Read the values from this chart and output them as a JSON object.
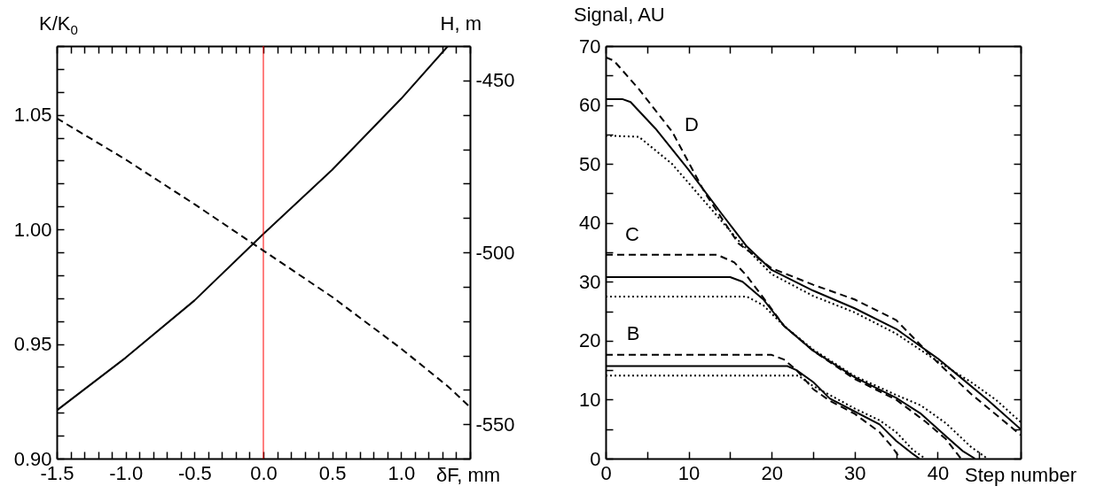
{
  "chart_data": [
    {
      "type": "line",
      "xlabel": "δF, mm",
      "ylabel": "K/K$_{0}$",
      "y2label": "H, m",
      "x": [
        -1.5,
        -1.0,
        -0.5,
        0,
        0.5,
        1.0,
        1.34,
        1.5
      ],
      "series": [
        {
          "color": "#000000",
          "line_style": "solid",
          "values": [
            0.921,
            0.944,
            0.969,
            0.998,
            1.026,
            1.057,
            1.08,
            null
          ]
        },
        {
          "color": "#000000",
          "line_style": "dashed",
          "axis": "y2",
          "values": [
            -461,
            -473,
            -486,
            -499.5,
            -513,
            -528,
            -539,
            -545
          ]
        }
      ],
      "xlim": [
        -1.5,
        1.5
      ],
      "xticks": [
        {
          "value": -1.5,
          "label": "-1.5"
        },
        {
          "value": -1.4,
          "label": null
        },
        {
          "value": -1.3,
          "label": null
        },
        {
          "value": -1.2,
          "label": null
        },
        {
          "value": -1.1,
          "label": null
        },
        {
          "value": -1.0,
          "label": "-1.0"
        },
        {
          "value": -0.9,
          "label": null
        },
        {
          "value": -0.8,
          "label": null
        },
        {
          "value": -0.7,
          "label": null
        },
        {
          "value": -0.6,
          "label": null
        },
        {
          "value": -0.5,
          "label": "-0.5"
        },
        {
          "value": -0.4,
          "label": null
        },
        {
          "value": -0.3,
          "label": null
        },
        {
          "value": -0.2,
          "label": null
        },
        {
          "value": -0.1,
          "label": null
        },
        {
          "value": 0,
          "label": "0.0"
        },
        {
          "value": 0.1,
          "label": null
        },
        {
          "value": 0.2,
          "label": null
        },
        {
          "value": 0.3,
          "label": null
        },
        {
          "value": 0.4,
          "label": null
        },
        {
          "value": 0.5,
          "label": "0.5"
        },
        {
          "value": 0.6,
          "label": null
        },
        {
          "value": 0.7,
          "label": null
        },
        {
          "value": 0.8,
          "label": null
        },
        {
          "value": 0.9,
          "label": null
        },
        {
          "value": 1.0,
          "label": "1.0"
        },
        {
          "value": 1.1,
          "label": null
        },
        {
          "value": 1.2,
          "label": null
        },
        {
          "value": 1.3,
          "label": null
        },
        {
          "value": 1.4,
          "label": null
        },
        {
          "value": 1.5,
          "label": null
        }
      ],
      "ylim": [
        0.9,
        1.08
      ],
      "yticks": [
        {
          "value": 0.9,
          "label": "0.90"
        },
        {
          "value": 0.91,
          "label": null
        },
        {
          "value": 0.92,
          "label": null
        },
        {
          "value": 0.93,
          "label": null
        },
        {
          "value": 0.94,
          "label": null
        },
        {
          "value": 0.95,
          "label": "0.95"
        },
        {
          "value": 0.96,
          "label": null
        },
        {
          "value": 0.97,
          "label": null
        },
        {
          "value": 0.98,
          "label": null
        },
        {
          "value": 0.99,
          "label": null
        },
        {
          "value": 1,
          "label": "1.00"
        },
        {
          "value": 1.01,
          "label": null
        },
        {
          "value": 1.02,
          "label": null
        },
        {
          "value": 1.03,
          "label": null
        },
        {
          "value": 1.04,
          "label": null
        },
        {
          "value": 1.05,
          "label": "1.05"
        },
        {
          "value": 1.06,
          "label": null
        },
        {
          "value": 1.07,
          "label": null
        },
        {
          "value": 1.08,
          "label": null
        }
      ],
      "y2lim": [
        -560,
        -440
      ],
      "y2ticks": [
        {
          "value": -560,
          "label": null
        },
        -550,
        {
          "value": -540,
          "label": null
        },
        {
          "value": -530,
          "label": null
        },
        {
          "value": -520,
          "label": null
        },
        {
          "value": -510,
          "label": null
        },
        -500,
        {
          "value": -490,
          "label": null
        },
        {
          "value": -480,
          "label": null
        },
        {
          "value": -470,
          "label": null
        },
        {
          "value": -460,
          "label": null
        },
        -450,
        {
          "value": -440,
          "label": null
        }
      ],
      "ref_lines": [
        {
          "axis": "x",
          "value": 0,
          "color": "#ff0000"
        }
      ]
    },
    {
      "type": "line",
      "xlabel": "Step number",
      "ylabel": "Signal, AU",
      "series": [
        {
          "color": "#000000",
          "line_style": "dashed",
          "x": [
            0,
            1,
            4,
            8,
            12,
            16,
            20,
            25,
            30,
            35,
            40,
            44,
            47,
            50
          ],
          "values": [
            68.1,
            67.5,
            62.7,
            55.5,
            45,
            36.5,
            32.3,
            29.5,
            27,
            23.5,
            16.3,
            11,
            7.5,
            4
          ]
        },
        {
          "color": "#000000",
          "line_style": "solid",
          "x": [
            0,
            2,
            3,
            6,
            10,
            14,
            17,
            20,
            25,
            30,
            35,
            40,
            43,
            46,
            50
          ],
          "values": [
            61,
            61,
            60.5,
            56,
            49,
            41.5,
            36,
            32,
            28.5,
            25.5,
            22,
            17,
            13.5,
            10,
            5
          ]
        },
        {
          "color": "#000000",
          "line_style": "dotted",
          "x": [
            0,
            4,
            8,
            12,
            16,
            20,
            25,
            30,
            35,
            40,
            44,
            47,
            50
          ],
          "values": [
            54.8,
            54.6,
            50,
            43.5,
            37,
            31.3,
            27.6,
            24.8,
            21.2,
            16.5,
            13,
            10,
            6.2
          ]
        },
        {
          "color": "#000000",
          "line_style": "dashed",
          "x": [
            0,
            13.4,
            15.5,
            17,
            19,
            21.5,
            25,
            30,
            35,
            38.5,
            41,
            42.8
          ],
          "values": [
            34.6,
            34.6,
            33.3,
            31,
            27.3,
            22.5,
            18.3,
            13.5,
            10,
            6.3,
            3.3,
            0
          ]
        },
        {
          "color": "#000000",
          "line_style": "solid",
          "x": [
            0,
            15,
            16.5,
            19,
            21.5,
            25,
            30,
            35,
            38,
            41,
            43,
            44.5
          ],
          "values": [
            30.8,
            30.8,
            30,
            27,
            22.5,
            18.3,
            13.8,
            10.3,
            7.6,
            3.8,
            1.3,
            0
          ]
        },
        {
          "color": "#000000",
          "line_style": "dotted",
          "x": [
            0,
            17,
            19,
            21.5,
            25,
            30,
            35,
            38,
            41,
            44,
            45.5,
            46
          ],
          "values": [
            27.5,
            27.5,
            26,
            22.5,
            18.5,
            14,
            10.8,
            9,
            6,
            2,
            0.5,
            0
          ]
        },
        {
          "color": "#000000",
          "line_style": "dashed",
          "x": [
            0,
            20,
            21.5,
            23,
            25,
            27,
            30,
            33,
            34.5,
            35.5
          ],
          "values": [
            17.6,
            17.6,
            16.8,
            15,
            11.8,
            9.8,
            7.6,
            4.5,
            2,
            0
          ]
        },
        {
          "color": "#000000",
          "line_style": "solid",
          "x": [
            0,
            21.9,
            23,
            25,
            27,
            30,
            33,
            35,
            37,
            37.8
          ],
          "values": [
            15.7,
            15.7,
            15,
            13,
            10.2,
            8,
            5.8,
            3,
            0.8,
            0
          ]
        },
        {
          "color": "#000000",
          "line_style": "dotted",
          "x": [
            0,
            23.2,
            25,
            27,
            30,
            33,
            35,
            37,
            38.5
          ],
          "values": [
            14.1,
            14.1,
            12.3,
            10.8,
            8.5,
            6.5,
            4.5,
            1.5,
            0
          ]
        }
      ],
      "xlim": [
        0,
        50
      ],
      "xticks": [
        0,
        {
          "value": 5,
          "label": null
        },
        10,
        {
          "value": 15,
          "label": null
        },
        20,
        {
          "value": 25,
          "label": null
        },
        30,
        {
          "value": 35,
          "label": null
        },
        40,
        {
          "value": 45,
          "label": null
        },
        {
          "value": 50,
          "label": null
        }
      ],
      "ylim": [
        0,
        70
      ],
      "yticks": [
        0,
        {
          "value": 5,
          "label": null
        },
        10,
        {
          "value": 15,
          "label": null
        },
        20,
        {
          "value": 25,
          "label": null
        },
        30,
        {
          "value": 35,
          "label": null
        },
        40,
        {
          "value": 45,
          "label": null
        },
        50,
        {
          "value": 55,
          "label": null
        },
        60,
        {
          "value": 65,
          "label": null
        },
        70
      ],
      "annotations": [
        "D",
        "C",
        "B"
      ]
    }
  ]
}
